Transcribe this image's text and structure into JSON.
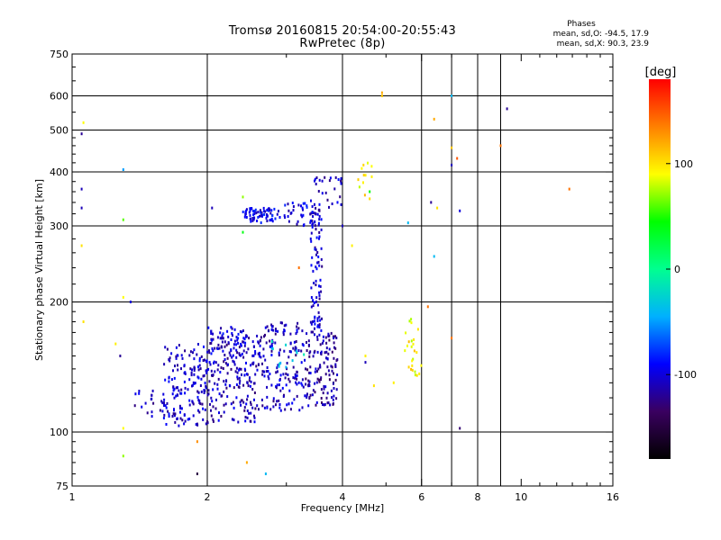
{
  "chart_data": {
    "type": "scatter",
    "title": "Tromsø 20160815 20:54:00-20:55:43",
    "subtitle": "RwPretec (8p)",
    "xlabel": "Frequency [MHz]",
    "ylabel": "Stationary phase Virtual Height [km]",
    "x_scale": "log",
    "y_scale": "log",
    "xlim": [
      1,
      16
    ],
    "ylim": [
      75,
      750
    ],
    "x_ticks": [
      1,
      2,
      4,
      6,
      8,
      10,
      16
    ],
    "x_tick_labels": [
      "1",
      "2",
      "4",
      "6",
      "8",
      "10",
      "16"
    ],
    "x_gridlines": [
      2,
      4,
      6,
      7,
      8,
      9
    ],
    "y_ticks": [
      75,
      100,
      200,
      300,
      400,
      500,
      600,
      750
    ],
    "y_tick_labels": [
      "75",
      "100",
      "200",
      "300",
      "400",
      "500",
      "600",
      "750"
    ],
    "y_gridlines": [
      100,
      200,
      300,
      400,
      500,
      600
    ],
    "grid": true,
    "stats_header": "Phases",
    "stats_lines": [
      "mean, sd,O: -94.5, 17.9",
      "mean, sd,X:  90.3, 23.9"
    ],
    "colorbar": {
      "label": "[deg]",
      "range": [
        -180,
        180
      ],
      "ticks": [
        -100,
        0,
        100
      ],
      "tick_labels": [
        "-100",
        "0",
        "100"
      ],
      "colors": [
        "#000000",
        "#3a0060",
        "#0000ff",
        "#00b0ff",
        "#00ff90",
        "#00ff00",
        "#ffff00",
        "#ff8000",
        "#ff0000"
      ]
    },
    "clusters": [
      {
        "fmin": 1.6,
        "fmax": 2.0,
        "hmin": 103,
        "hmax": 160,
        "phase": -105,
        "n": 160
      },
      {
        "fmin": 2.0,
        "fmax": 2.6,
        "hmin": 105,
        "hmax": 170,
        "phase": -110,
        "n": 190
      },
      {
        "fmin": 2.6,
        "fmax": 3.3,
        "hmin": 112,
        "hmax": 180,
        "phase": -108,
        "n": 160
      },
      {
        "fmin": 3.3,
        "fmax": 3.9,
        "hmin": 115,
        "hmax": 170,
        "phase": -115,
        "n": 130
      },
      {
        "fmin": 2.0,
        "fmax": 2.5,
        "hmin": 150,
        "hmax": 175,
        "phase": -100,
        "n": 50
      },
      {
        "fmin": 3.4,
        "fmax": 3.6,
        "hmin": 170,
        "hmax": 330,
        "phase": -105,
        "n": 90
      },
      {
        "fmin": 2.4,
        "fmax": 2.8,
        "hmin": 305,
        "hmax": 330,
        "phase": -95,
        "n": 70
      },
      {
        "fmin": 2.8,
        "fmax": 3.5,
        "hmin": 300,
        "hmax": 340,
        "phase": -100,
        "n": 40
      },
      {
        "fmin": 3.4,
        "fmax": 4.0,
        "hmin": 330,
        "hmax": 390,
        "phase": -105,
        "n": 25
      },
      {
        "fmin": 1.35,
        "fmax": 1.6,
        "hmin": 108,
        "hmax": 125,
        "phase": -110,
        "n": 20
      },
      {
        "fmin": 5.5,
        "fmax": 6.0,
        "hmin": 135,
        "hmax": 185,
        "phase": 95,
        "n": 25
      },
      {
        "fmin": 4.3,
        "fmax": 4.7,
        "hmin": 340,
        "hmax": 420,
        "phase": 95,
        "n": 12
      },
      {
        "fmin": 2.7,
        "fmax": 3.3,
        "hmin": 140,
        "hmax": 165,
        "phase": -30,
        "n": 12
      }
    ],
    "points": [
      {
        "x": 1.05,
        "y": 490,
        "phase": -120
      },
      {
        "x": 1.05,
        "y": 365,
        "phase": -110
      },
      {
        "x": 1.05,
        "y": 330,
        "phase": -110
      },
      {
        "x": 1.06,
        "y": 520,
        "phase": 90
      },
      {
        "x": 1.05,
        "y": 270,
        "phase": 100
      },
      {
        "x": 1.06,
        "y": 180,
        "phase": 100
      },
      {
        "x": 1.3,
        "y": 405,
        "phase": -50
      },
      {
        "x": 1.3,
        "y": 310,
        "phase": 60
      },
      {
        "x": 1.3,
        "y": 205,
        "phase": 90
      },
      {
        "x": 1.35,
        "y": 200,
        "phase": -100
      },
      {
        "x": 1.28,
        "y": 150,
        "phase": -120
      },
      {
        "x": 1.25,
        "y": 160,
        "phase": 95
      },
      {
        "x": 1.3,
        "y": 88,
        "phase": 70
      },
      {
        "x": 1.3,
        "y": 102,
        "phase": 90
      },
      {
        "x": 1.9,
        "y": 95,
        "phase": 130
      },
      {
        "x": 1.9,
        "y": 80,
        "phase": -150
      },
      {
        "x": 2.05,
        "y": 330,
        "phase": -110
      },
      {
        "x": 2.45,
        "y": 85,
        "phase": 120
      },
      {
        "x": 2.7,
        "y": 80,
        "phase": -40
      },
      {
        "x": 4.9,
        "y": 600,
        "phase": 110
      },
      {
        "x": 4.9,
        "y": 610,
        "phase": 120
      },
      {
        "x": 6.4,
        "y": 530,
        "phase": 120
      },
      {
        "x": 7.0,
        "y": 600,
        "phase": -40
      },
      {
        "x": 7.0,
        "y": 455,
        "phase": 110
      },
      {
        "x": 7.2,
        "y": 430,
        "phase": 150
      },
      {
        "x": 7.0,
        "y": 415,
        "phase": -110
      },
      {
        "x": 9.0,
        "y": 460,
        "phase": 140
      },
      {
        "x": 9.3,
        "y": 560,
        "phase": -120
      },
      {
        "x": 12.8,
        "y": 365,
        "phase": 140
      },
      {
        "x": 6.3,
        "y": 340,
        "phase": -120
      },
      {
        "x": 6.5,
        "y": 330,
        "phase": 100
      },
      {
        "x": 7.3,
        "y": 325,
        "phase": -100
      },
      {
        "x": 6.4,
        "y": 255,
        "phase": -40
      },
      {
        "x": 6.2,
        "y": 195,
        "phase": 140
      },
      {
        "x": 5.6,
        "y": 305,
        "phase": -40
      },
      {
        "x": 7.0,
        "y": 165,
        "phase": 140
      },
      {
        "x": 7.3,
        "y": 102,
        "phase": -130
      },
      {
        "x": 4.5,
        "y": 150,
        "phase": 95
      },
      {
        "x": 4.7,
        "y": 128,
        "phase": 100
      },
      {
        "x": 4.5,
        "y": 145,
        "phase": -110
      },
      {
        "x": 4.2,
        "y": 270,
        "phase": 95
      },
      {
        "x": 4.0,
        "y": 300,
        "phase": -110
      },
      {
        "x": 3.9,
        "y": 340,
        "phase": -90
      },
      {
        "x": 3.2,
        "y": 240,
        "phase": 140
      },
      {
        "x": 3.4,
        "y": 280,
        "phase": -100
      },
      {
        "x": 2.4,
        "y": 290,
        "phase": 40
      },
      {
        "x": 2.4,
        "y": 350,
        "phase": 70
      },
      {
        "x": 4.6,
        "y": 360,
        "phase": 40
      },
      {
        "x": 5.2,
        "y": 130,
        "phase": 95
      }
    ]
  }
}
